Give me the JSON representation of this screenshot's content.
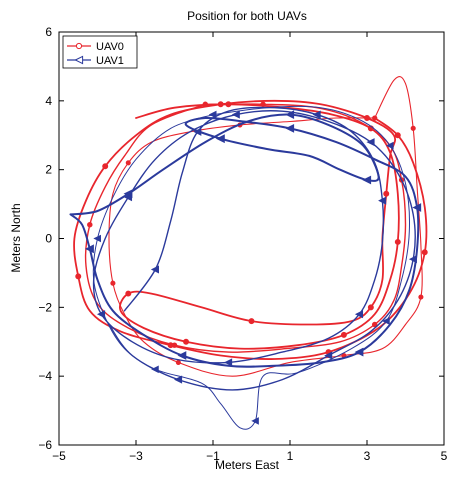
{
  "chart_data": {
    "type": "line",
    "title": "Position for both UAVs",
    "xlabel": "Meters East",
    "ylabel": "Meters North",
    "xlim": [
      -5,
      5
    ],
    "ylim": [
      -6,
      6
    ],
    "xticks": [
      -5,
      -3,
      -1,
      1,
      3,
      5
    ],
    "yticks": [
      -6,
      -4,
      -2,
      0,
      2,
      4,
      6
    ],
    "xtick_labels": [
      "−5",
      "−3",
      "−1",
      "1",
      "3",
      "5"
    ],
    "ytick_labels": [
      "−6",
      "−4",
      "−2",
      "0",
      "2",
      "4",
      "6"
    ],
    "grid": false,
    "legend_position": "top-left",
    "series": [
      {
        "name": "UAV0",
        "color": "#e8262d",
        "marker": "circle",
        "laps": [
          {
            "width": 1.1,
            "points": [
              [
                3.2,
                3.5
              ],
              [
                3.7,
                4.6
              ],
              [
                4.0,
                4.5
              ],
              [
                4.2,
                3.2
              ],
              [
                4.3,
                1.5
              ],
              [
                4.4,
                -0.2
              ],
              [
                4.4,
                -1.7
              ],
              [
                4.0,
                -2.5
              ],
              [
                3.4,
                -3.2
              ],
              [
                2.4,
                -3.4
              ],
              [
                1.0,
                -3.6
              ],
              [
                -0.5,
                -4.0
              ],
              [
                -1.9,
                -3.6
              ],
              [
                -2.8,
                -3.0
              ],
              [
                -3.3,
                -2.2
              ],
              [
                -3.6,
                -1.3
              ],
              [
                -3.7,
                0.0
              ],
              [
                -3.6,
                1.3
              ],
              [
                -3.2,
                2.2
              ],
              [
                -2.6,
                2.8
              ],
              [
                -1.6,
                3.1
              ],
              [
                -0.3,
                3.3
              ],
              [
                1.0,
                3.4
              ],
              [
                2.2,
                3.5
              ],
              [
                3.2,
                3.5
              ]
            ]
          },
          {
            "width": 1.4,
            "points": [
              [
                -1.2,
                3.9
              ],
              [
                0.3,
                3.9
              ],
              [
                1.7,
                3.8
              ],
              [
                2.8,
                3.4
              ],
              [
                3.6,
                2.7
              ],
              [
                3.9,
                1.7
              ],
              [
                4.0,
                0.4
              ],
              [
                3.9,
                -0.8
              ],
              [
                3.7,
                -1.8
              ],
              [
                3.2,
                -2.5
              ],
              [
                2.3,
                -3.0
              ],
              [
                0.9,
                -3.2
              ],
              [
                -0.6,
                -3.3
              ],
              [
                -2.0,
                -3.1
              ],
              [
                -3.2,
                -2.6
              ],
              [
                -4.0,
                -1.9
              ],
              [
                -4.3,
                -0.8
              ],
              [
                -4.2,
                0.4
              ],
              [
                -3.8,
                1.5
              ],
              [
                -3.3,
                2.4
              ],
              [
                -2.6,
                3.3
              ],
              [
                -1.2,
                3.9
              ]
            ]
          },
          {
            "width": 1.8,
            "points": [
              [
                -3.0,
                3.5
              ],
              [
                -2.0,
                3.8
              ],
              [
                -0.6,
                3.9
              ],
              [
                0.9,
                3.8
              ],
              [
                2.1,
                3.6
              ],
              [
                3.1,
                3.2
              ],
              [
                3.6,
                2.5
              ],
              [
                3.8,
                1.3
              ],
              [
                3.8,
                -0.1
              ],
              [
                3.6,
                -1.2
              ],
              [
                3.2,
                -2.2
              ],
              [
                2.4,
                -2.8
              ],
              [
                1.2,
                -3.1
              ],
              [
                -0.3,
                -3.2
              ],
              [
                -1.7,
                -3.0
              ],
              [
                -2.8,
                -2.6
              ],
              [
                -3.4,
                -2.1
              ],
              [
                -3.2,
                -1.6
              ],
              [
                -2.6,
                -1.6
              ],
              [
                -1.3,
                -2.0
              ],
              [
                0.0,
                -2.4
              ],
              [
                1.5,
                -2.5
              ],
              [
                2.6,
                -2.4
              ],
              [
                3.1,
                -2.0
              ],
              [
                3.4,
                -1.2
              ],
              [
                3.4,
                0.0
              ],
              [
                3.5,
                1.3
              ],
              [
                3.6,
                2.4
              ],
              [
                3.7,
                3.0
              ],
              [
                3.0,
                3.5
              ],
              [
                1.8,
                3.9
              ],
              [
                0.6,
                4.0
              ],
              [
                -0.8,
                3.9
              ],
              [
                -2.1,
                3.6
              ],
              [
                -3.0,
                3.0
              ],
              [
                -3.8,
                2.1
              ],
              [
                -4.3,
                1.1
              ],
              [
                -4.6,
                0.0
              ],
              [
                -4.5,
                -1.1
              ],
              [
                -4.2,
                -2.1
              ],
              [
                -3.4,
                -2.7
              ],
              [
                -2.1,
                -3.1
              ],
              [
                -0.8,
                -3.4
              ],
              [
                0.6,
                -3.5
              ],
              [
                2.0,
                -3.3
              ],
              [
                3.3,
                -2.6
              ],
              [
                4.1,
                -1.6
              ],
              [
                4.5,
                -0.4
              ],
              [
                4.5,
                0.9
              ],
              [
                4.2,
                2.2
              ],
              [
                3.8,
                3.0
              ],
              [
                3.2,
                3.5
              ]
            ]
          }
        ]
      },
      {
        "name": "UAV1",
        "color": "#2b3a9c",
        "marker": "triangle-left",
        "laps": [
          {
            "width": 1.0,
            "points": [
              [
                -1.0,
                3.6
              ],
              [
                0.4,
                3.8
              ],
              [
                1.8,
                3.8
              ],
              [
                2.9,
                3.4
              ],
              [
                3.6,
                2.7
              ],
              [
                4.0,
                1.6
              ],
              [
                4.1,
                0.2
              ],
              [
                3.9,
                -1.2
              ],
              [
                3.5,
                -2.4
              ],
              [
                2.6,
                -3.2
              ],
              [
                1.2,
                -3.9
              ],
              [
                0.3,
                -4.0
              ],
              [
                0.1,
                -5.3
              ],
              [
                -0.3,
                -5.5
              ],
              [
                -0.8,
                -4.8
              ],
              [
                -1.3,
                -4.2
              ],
              [
                -2.5,
                -3.8
              ],
              [
                -3.3,
                -3.2
              ],
              [
                -3.8,
                -2.3
              ],
              [
                -4.1,
                -1.2
              ],
              [
                -4.0,
                0.0
              ],
              [
                -3.6,
                1.2
              ],
              [
                -3.0,
                2.3
              ],
              [
                -2.1,
                3.2
              ],
              [
                -1.0,
                3.6
              ]
            ]
          },
          {
            "width": 1.4,
            "points": [
              [
                -3.3,
                -2.1
              ],
              [
                -2.5,
                -0.9
              ],
              [
                -2.1,
                0.5
              ],
              [
                -1.8,
                1.9
              ],
              [
                -1.4,
                3.1
              ],
              [
                -0.6,
                3.7
              ],
              [
                0.6,
                3.8
              ],
              [
                1.7,
                3.6
              ],
              [
                2.6,
                3.1
              ],
              [
                3.2,
                2.2
              ],
              [
                3.4,
                1.1
              ],
              [
                3.4,
                -0.1
              ],
              [
                3.2,
                -1.2
              ],
              [
                2.8,
                -2.2
              ],
              [
                2.0,
                -2.9
              ],
              [
                0.8,
                -3.3
              ],
              [
                -0.6,
                -3.6
              ],
              [
                -2.0,
                -3.5
              ],
              [
                -3.1,
                -3.0
              ],
              [
                -3.9,
                -2.2
              ],
              [
                -4.1,
                -1.2
              ],
              [
                -3.8,
                0.0
              ],
              [
                -3.2,
                1.2
              ],
              [
                -2.5,
                2.3
              ],
              [
                -1.6,
                3.1
              ],
              [
                -0.4,
                3.6
              ],
              [
                0.8,
                3.7
              ],
              [
                2.0,
                3.4
              ],
              [
                3.1,
                2.8
              ],
              [
                3.8,
                1.9
              ],
              [
                4.2,
                0.7
              ],
              [
                4.2,
                -0.6
              ],
              [
                3.8,
                -1.8
              ],
              [
                3.1,
                -2.7
              ],
              [
                2.0,
                -3.4
              ],
              [
                0.8,
                -4.1
              ],
              [
                -0.5,
                -4.4
              ],
              [
                -1.9,
                -4.1
              ],
              [
                -3.1,
                -3.4
              ],
              [
                -3.7,
                -2.5
              ]
            ]
          },
          {
            "width": 2.0,
            "points": [
              [
                -4.7,
                0.7
              ],
              [
                -4.0,
                0.8
              ],
              [
                -3.2,
                1.3
              ],
              [
                -2.3,
                2.0
              ],
              [
                -1.2,
                2.8
              ],
              [
                -0.1,
                3.4
              ],
              [
                1.0,
                3.6
              ],
              [
                2.0,
                3.3
              ],
              [
                2.9,
                2.7
              ],
              [
                3.3,
                1.8
              ],
              [
                3.0,
                1.7
              ],
              [
                2.3,
                2.0
              ],
              [
                1.5,
                2.4
              ],
              [
                0.4,
                2.6
              ],
              [
                -0.8,
                2.9
              ],
              [
                -1.7,
                3.3
              ],
              [
                -1.2,
                3.5
              ],
              [
                -0.2,
                3.4
              ],
              [
                1.0,
                3.2
              ],
              [
                2.2,
                2.8
              ],
              [
                3.2,
                2.3
              ],
              [
                4.0,
                1.8
              ],
              [
                4.3,
                0.9
              ],
              [
                4.3,
                -0.3
              ],
              [
                4.1,
                -1.5
              ],
              [
                3.6,
                -2.5
              ],
              [
                2.8,
                -3.3
              ],
              [
                1.8,
                -3.6
              ],
              [
                0.6,
                -3.7
              ],
              [
                -0.6,
                -3.7
              ],
              [
                -1.8,
                -3.4
              ],
              [
                -2.8,
                -2.8
              ],
              [
                -3.6,
                -2.1
              ],
              [
                -4.0,
                -1.2
              ],
              [
                -4.2,
                -0.3
              ],
              [
                -4.4,
                0.4
              ],
              [
                -4.7,
                0.7
              ]
            ]
          }
        ]
      }
    ]
  }
}
